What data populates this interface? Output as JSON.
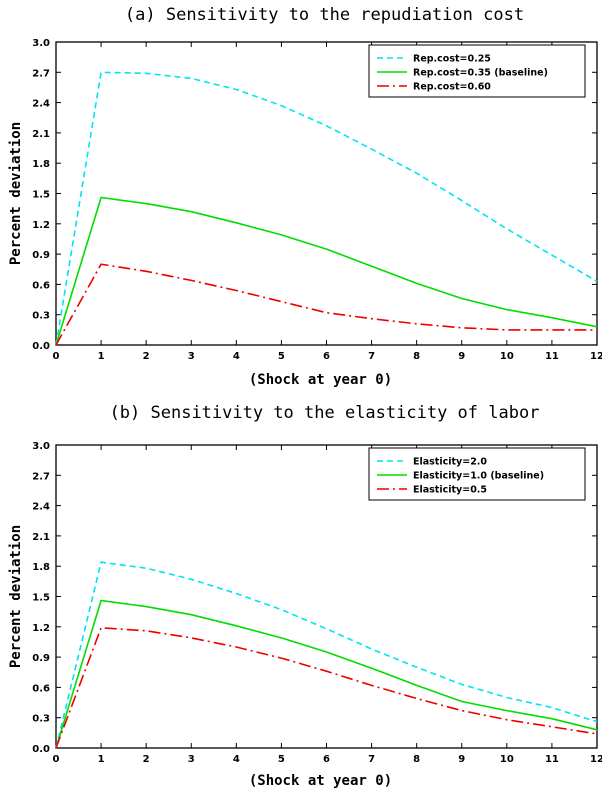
{
  "chart_data": [
    {
      "type": "line",
      "title": "(a) Sensitivity to the repudiation cost",
      "xlabel": "(Shock at year 0)",
      "ylabel": "Percent deviation",
      "xlim": [
        0,
        12
      ],
      "ylim": [
        0,
        3.0
      ],
      "xticks": [
        "0",
        "1",
        "2",
        "3",
        "4",
        "5",
        "6",
        "7",
        "8",
        "9",
        "10",
        "11",
        "12"
      ],
      "yticks": [
        "0.0",
        "0.3",
        "0.6",
        "0.9",
        "1.2",
        "1.5",
        "1.8",
        "2.1",
        "2.4",
        "2.7",
        "3.0"
      ],
      "legend_position": "top-right",
      "x": [
        0,
        1,
        2,
        3,
        4,
        5,
        6,
        7,
        8,
        9,
        10,
        11,
        12
      ],
      "series": [
        {
          "name": "Rep.cost=0.25",
          "color": "#00e5ee",
          "dash": "dashed",
          "values": [
            0.0,
            2.7,
            2.69,
            2.64,
            2.53,
            2.37,
            2.17,
            1.94,
            1.7,
            1.43,
            1.15,
            0.89,
            0.63
          ]
        },
        {
          "name": "Rep.cost=0.35 (baseline)",
          "color": "#00dd00",
          "dash": "solid",
          "values": [
            0.0,
            1.46,
            1.4,
            1.32,
            1.21,
            1.09,
            0.95,
            0.78,
            0.61,
            0.46,
            0.35,
            0.27,
            0.18
          ]
        },
        {
          "name": "Rep.cost=0.60",
          "color": "#ee0000",
          "dash": "dashdot",
          "values": [
            0.0,
            0.8,
            0.73,
            0.64,
            0.54,
            0.43,
            0.32,
            0.26,
            0.21,
            0.17,
            0.15,
            0.15,
            0.15
          ]
        }
      ]
    },
    {
      "type": "line",
      "title": "(b) Sensitivity to the elasticity of labor",
      "xlabel": "(Shock at year 0)",
      "ylabel": "Percent deviation",
      "xlim": [
        0,
        12
      ],
      "ylim": [
        0,
        3.0
      ],
      "xticks": [
        "0",
        "1",
        "2",
        "3",
        "4",
        "5",
        "6",
        "7",
        "8",
        "9",
        "10",
        "11",
        "12"
      ],
      "yticks": [
        "0.0",
        "0.3",
        "0.6",
        "0.9",
        "1.2",
        "1.5",
        "1.8",
        "2.1",
        "2.4",
        "2.7",
        "3.0"
      ],
      "legend_position": "top-right",
      "x": [
        0,
        1,
        2,
        3,
        4,
        5,
        6,
        7,
        8,
        9,
        10,
        11,
        12
      ],
      "series": [
        {
          "name": "Elasticity=2.0",
          "color": "#00e5ee",
          "dash": "dashed",
          "values": [
            0.0,
            1.84,
            1.78,
            1.67,
            1.53,
            1.37,
            1.18,
            0.98,
            0.8,
            0.63,
            0.5,
            0.4,
            0.26
          ]
        },
        {
          "name": "Elasticity=1.0 (baseline)",
          "color": "#00dd00",
          "dash": "solid",
          "values": [
            0.0,
            1.46,
            1.4,
            1.32,
            1.21,
            1.09,
            0.95,
            0.79,
            0.62,
            0.46,
            0.37,
            0.29,
            0.18
          ]
        },
        {
          "name": "Elasticity=0.5",
          "color": "#ee0000",
          "dash": "dashdot",
          "values": [
            0.0,
            1.19,
            1.16,
            1.09,
            1.0,
            0.89,
            0.76,
            0.62,
            0.49,
            0.37,
            0.28,
            0.21,
            0.14
          ]
        }
      ]
    }
  ]
}
